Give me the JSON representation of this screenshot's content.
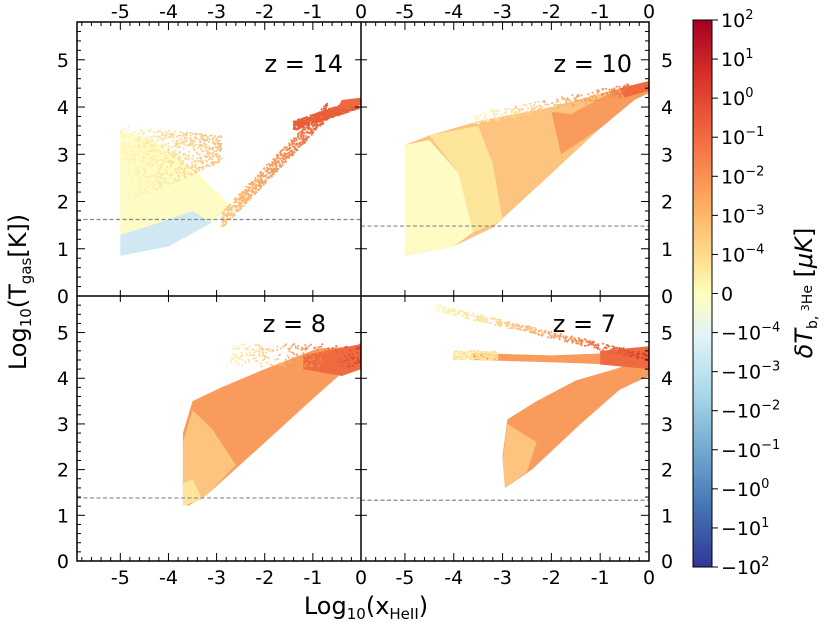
{
  "chart_data": {
    "type": "scatter",
    "xlabel": "Log10(xHeII)",
    "ylabel": "Log10(Tgas[K])",
    "xlim": [
      -5.9,
      0
    ],
    "ylim": [
      0,
      5.8
    ],
    "x_ticks": [
      -5,
      -4,
      -3,
      -2,
      -1,
      0
    ],
    "y_ticks": [
      0,
      1,
      2,
      3,
      4,
      5
    ],
    "tick_labels_x": [
      "-5",
      "-4",
      "-3",
      "-2",
      "-1",
      "0"
    ],
    "tick_labels_y": [
      "0",
      "1",
      "2",
      "3",
      "4",
      "5"
    ],
    "panels": [
      {
        "label": "z = 14",
        "ref_line": 1.62,
        "id": "z14"
      },
      {
        "label": "z = 10",
        "ref_line": 1.48,
        "id": "z10"
      },
      {
        "label": "z = 8",
        "ref_line": 1.38,
        "id": "z8"
      },
      {
        "label": "z = 7",
        "ref_line": 1.33,
        "id": "z7"
      }
    ],
    "colorbar": {
      "label": "δT_b, 3He [μK]",
      "ticks": [
        "10^2",
        "10^1",
        "10^0",
        "10^-1",
        "10^-2",
        "10^-3",
        "10^-4",
        "0",
        "-10^-4",
        "-10^-3",
        "-10^-2",
        "-10^-1",
        "-10^0",
        "-10^1",
        "-10^2"
      ],
      "colormap": "RdYlBu_r"
    }
  },
  "colors": {
    "pale_yellow": "#fefbc4",
    "yellow": "#fde59a",
    "light_orange": "#fdc47f",
    "orange": "#f89b5c",
    "orange_red": "#ef6a3f",
    "red": "#d63a2a",
    "light_blue": "#cfe8f1",
    "ref_line": "#888888"
  }
}
